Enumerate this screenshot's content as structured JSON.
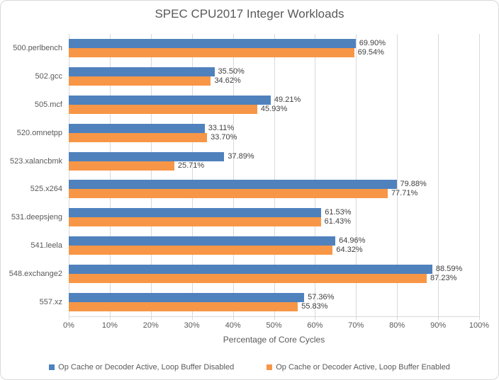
{
  "chart_data": {
    "type": "bar",
    "orientation": "horizontal",
    "title": "SPEC CPU2017 Integer Workloads",
    "xlabel": "Percentage of Core Cycles",
    "xlim": [
      0,
      100
    ],
    "xticks": [
      "0%",
      "10%",
      "20%",
      "30%",
      "40%",
      "50%",
      "60%",
      "70%",
      "80%",
      "90%",
      "100%"
    ],
    "grid": "vertical",
    "legend_position": "bottom",
    "data_label_format": "0.00%",
    "categories": [
      "500.perlbench",
      "502.gcc",
      "505.mcf",
      "520.omnetpp",
      "523.xalancbmk",
      "525.x264",
      "531.deepsjeng",
      "541.leela",
      "548.exchange2",
      "557.xz"
    ],
    "series": [
      {
        "name": "Op Cache or Decoder Active, Loop Buffer Disabled",
        "color": "#4F81BD",
        "values": [
          69.9,
          35.5,
          49.21,
          33.11,
          37.89,
          79.88,
          61.53,
          64.96,
          88.59,
          57.36
        ]
      },
      {
        "name": "Op Cache or Decoder Active, Loop Buffer Enabled",
        "color": "#F79646",
        "values": [
          69.54,
          34.62,
          45.93,
          33.7,
          25.71,
          77.71,
          61.43,
          64.32,
          87.23,
          55.83
        ]
      }
    ],
    "colors": {
      "grid": "#D9D9D9",
      "axis_text": "#595959",
      "data_label": "#404040",
      "border": "#D9D9D9"
    }
  }
}
